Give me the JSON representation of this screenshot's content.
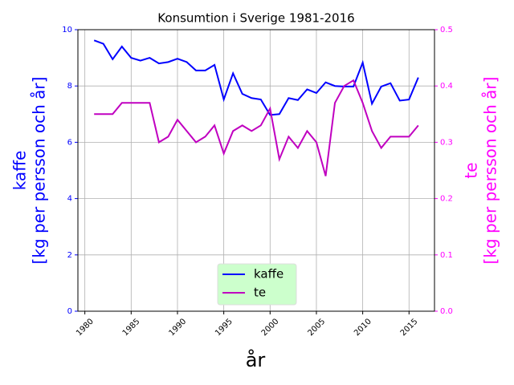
{
  "chart_data": {
    "type": "line",
    "title": "Konsumtion i Sverige 1981-2016",
    "xlabel": "år",
    "ylabel": [
      "kaffe",
      "[kg per persson och år]"
    ],
    "y2label": [
      "te",
      "[kg per persson och år]"
    ],
    "x": [
      1981,
      1982,
      1983,
      1984,
      1985,
      1986,
      1987,
      1988,
      1989,
      1990,
      1991,
      1992,
      1993,
      1994,
      1995,
      1996,
      1997,
      1998,
      1999,
      2000,
      2001,
      2002,
      2003,
      2004,
      2005,
      2006,
      2007,
      2008,
      2009,
      2010,
      2011,
      2012,
      2013,
      2014,
      2015,
      2016
    ],
    "series": [
      {
        "name": "kaffe",
        "color": "#0000ff",
        "values": [
          9.62,
          9.5,
          8.95,
          9.4,
          9.0,
          8.9,
          9.0,
          8.8,
          8.85,
          8.97,
          8.85,
          8.55,
          8.55,
          8.75,
          7.52,
          8.45,
          7.72,
          7.57,
          7.52,
          6.97,
          7.0,
          7.57,
          7.5,
          7.88,
          7.75,
          8.13,
          8.0,
          7.98,
          7.98,
          8.83,
          7.37,
          7.98,
          8.1,
          7.48,
          7.52,
          8.3
        ]
      },
      {
        "name": "te",
        "color": "#c000c0",
        "axis": "y2",
        "values": [
          0.35,
          0.35,
          0.35,
          0.37,
          0.37,
          0.37,
          0.37,
          0.3,
          0.31,
          0.34,
          0.32,
          0.3,
          0.31,
          0.33,
          0.28,
          0.32,
          0.33,
          0.32,
          0.33,
          0.36,
          0.27,
          0.31,
          0.29,
          0.32,
          0.3,
          0.24,
          0.37,
          0.4,
          0.41,
          0.37,
          0.32,
          0.29,
          0.31,
          0.31,
          0.31,
          0.33
        ]
      }
    ],
    "xlim": [
      1979.25,
      2017.75
    ],
    "xticks": [
      1980,
      1985,
      1990,
      1995,
      2000,
      2005,
      2010,
      2015
    ],
    "ylim": [
      0,
      10
    ],
    "yticks": [
      0,
      2,
      4,
      6,
      8,
      10
    ],
    "y2lim": [
      0,
      0.5
    ],
    "y2ticks": [
      {
        "value": 0,
        "label": "0.0"
      },
      0.1,
      0.2,
      0.3,
      0.4,
      0.5
    ],
    "ycolor": "#0000ff",
    "y2color": "#ff00ff",
    "grid": true,
    "legend": "lower center",
    "legend_color": "#ccffcc"
  }
}
